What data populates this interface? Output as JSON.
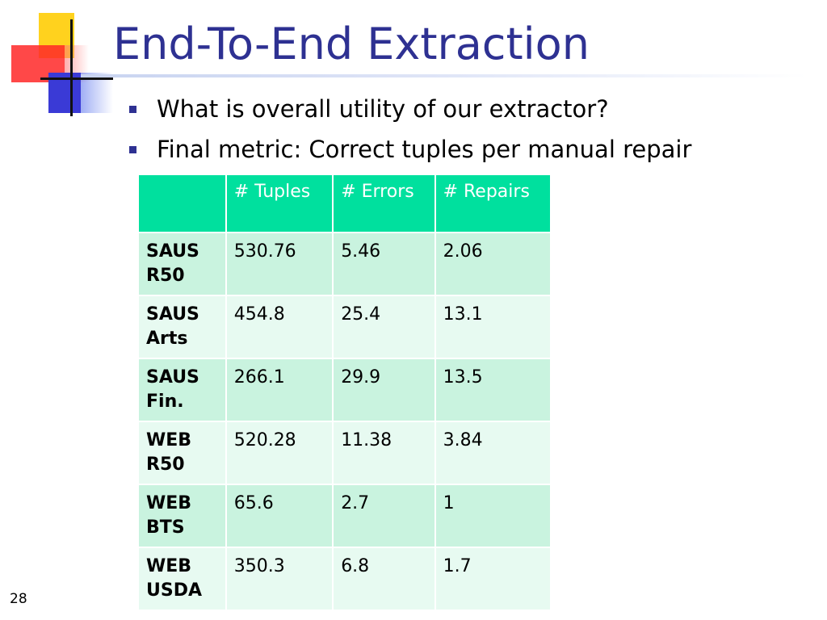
{
  "slide": {
    "title": "End-To-End Extraction",
    "bullets": [
      "What is overall utility of our extractor?",
      "Final metric: Correct tuples per manual repair"
    ],
    "page_number": "28"
  },
  "table": {
    "headers": [
      "",
      "# Tuples",
      "# Errors",
      "# Repairs"
    ],
    "rows": [
      {
        "label": "SAUS R50",
        "tuples": "530.76",
        "errors": "5.46",
        "repairs": "2.06"
      },
      {
        "label": "SAUS Arts",
        "tuples": "454.8",
        "errors": "25.4",
        "repairs": "13.1"
      },
      {
        "label": "SAUS Fin.",
        "tuples": "266.1",
        "errors": "29.9",
        "repairs": "13.5"
      },
      {
        "label": "WEB R50",
        "tuples": "520.28",
        "errors": "11.38",
        "repairs": "3.84"
      },
      {
        "label": "WEB BTS",
        "tuples": "65.6",
        "errors": "2.7",
        "repairs": "1"
      },
      {
        "label": "WEB USDA",
        "tuples": "350.3",
        "errors": "6.8",
        "repairs": "1.7"
      }
    ]
  },
  "colors": {
    "title": "#2e3192",
    "header_bg": "#00e09e",
    "row_dark": "#c9f3df",
    "row_light": "#e7faf1"
  }
}
